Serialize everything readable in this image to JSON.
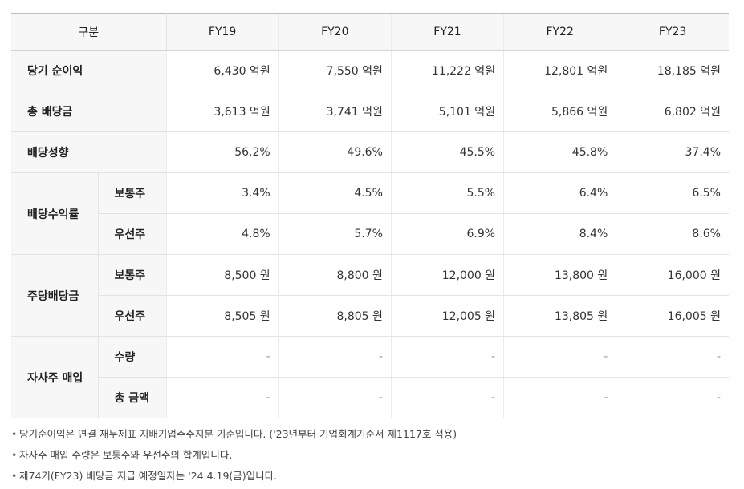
{
  "table": {
    "header": {
      "category": "구분",
      "years": [
        "FY19",
        "FY20",
        "FY21",
        "FY22",
        "FY23"
      ]
    },
    "rows": {
      "net_income": {
        "label": "당기 순이익",
        "values": [
          "6,430 억원",
          "7,550 억원",
          "11,222 억원",
          "12,801 억원",
          "18,185 억원"
        ]
      },
      "total_dividend": {
        "label": "총 배당금",
        "values": [
          "3,613 억원",
          "3,741 억원",
          "5,101 억원",
          "5,866 억원",
          "6,802 억원"
        ]
      },
      "payout_ratio": {
        "label": "배당성향",
        "values": [
          "56.2%",
          "49.6%",
          "45.5%",
          "45.8%",
          "37.4%"
        ]
      },
      "dividend_yield": {
        "label": "배당수익률",
        "common": {
          "label": "보통주",
          "values": [
            "3.4%",
            "4.5%",
            "5.5%",
            "6.4%",
            "6.5%"
          ]
        },
        "preferred": {
          "label": "우선주",
          "values": [
            "4.8%",
            "5.7%",
            "6.9%",
            "8.4%",
            "8.6%"
          ]
        }
      },
      "dps": {
        "label": "주당배당금",
        "common": {
          "label": "보통주",
          "values": [
            "8,500 원",
            "8,800 원",
            "12,000 원",
            "13,800 원",
            "16,000 원"
          ]
        },
        "preferred": {
          "label": "우선주",
          "values": [
            "8,505 원",
            "8,805 원",
            "12,005 원",
            "13,805 원",
            "16,005 원"
          ]
        }
      },
      "buyback": {
        "label": "자사주 매입",
        "quantity": {
          "label": "수량",
          "values": [
            "-",
            "-",
            "-",
            "-",
            "-"
          ]
        },
        "amount": {
          "label": "총 금액",
          "values": [
            "-",
            "-",
            "-",
            "-",
            "-"
          ]
        }
      }
    }
  },
  "notes": {
    "bullet": "•",
    "items": [
      "당기순이익은 연결 재무제표 지배기업주주지분 기준입니다. ('23년부터 기업회계기준서 제1117호 적용)",
      "자사주 매입 수량은 보통주와 우선주의 합계입니다.",
      "제74기(FY23) 배당금 지급 예정일자는 '24.4.19(금)입니다."
    ]
  }
}
